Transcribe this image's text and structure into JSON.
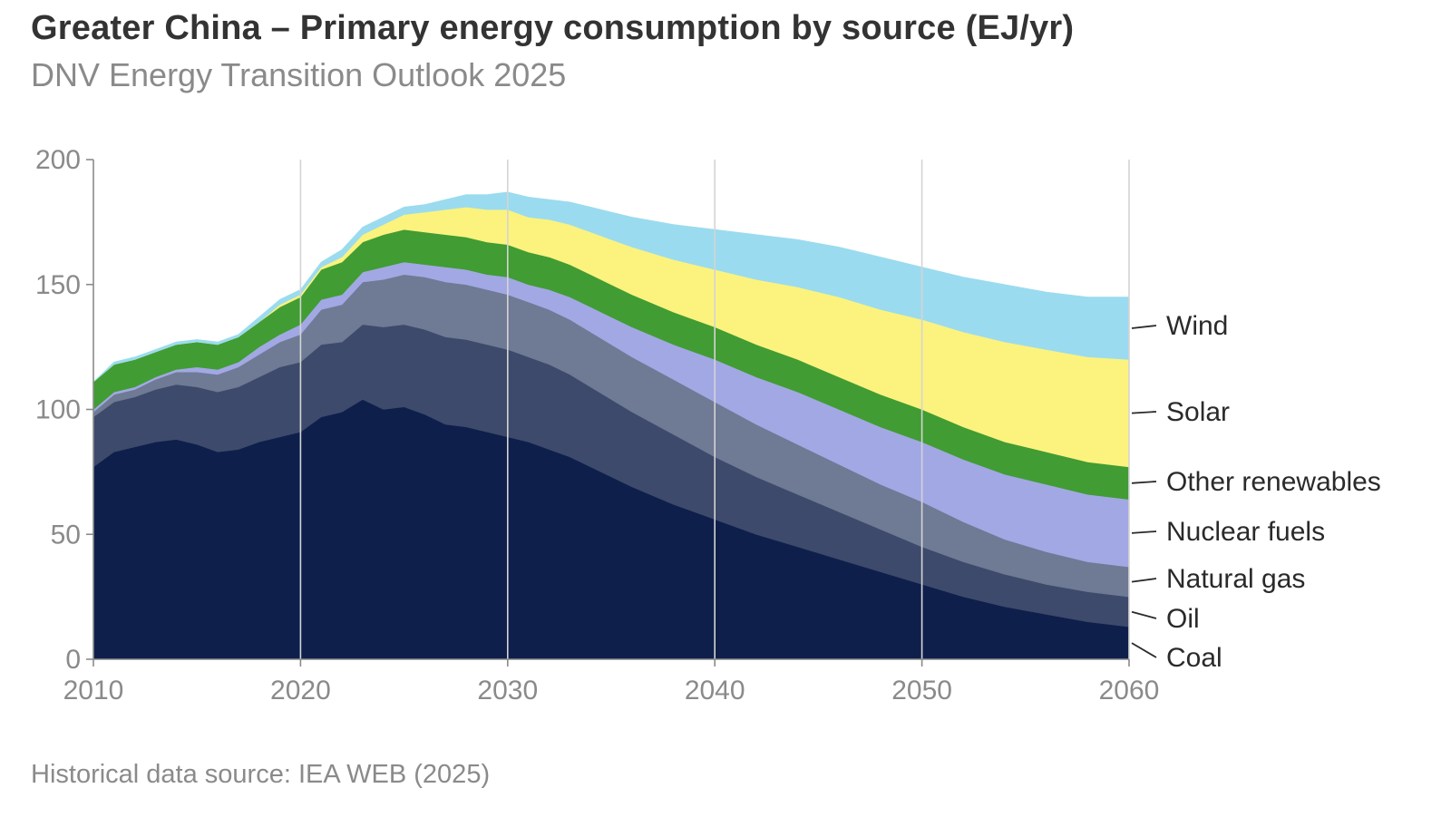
{
  "header": {
    "title": "Greater China – Primary energy consumption by source (EJ/yr)",
    "subtitle": "DNV Energy Transition Outlook 2025"
  },
  "footer": {
    "source": "Historical data source: IEA WEB (2025)"
  },
  "chart_data": {
    "type": "area",
    "stacked": true,
    "title": "Greater China – Primary energy consumption by source (EJ/yr)",
    "subtitle": "DNV Energy Transition Outlook 2025",
    "xlim": [
      2010,
      2060
    ],
    "ylim": [
      0,
      200
    ],
    "x_ticks": [
      2010,
      2020,
      2030,
      2040,
      2050,
      2060
    ],
    "y_ticks": [
      0,
      50,
      100,
      150,
      200
    ],
    "vertical_grid": true,
    "legend_placement": "right, inline labels at series ends",
    "x": [
      2010,
      2011,
      2012,
      2013,
      2014,
      2015,
      2016,
      2017,
      2018,
      2019,
      2020,
      2021,
      2022,
      2023,
      2024,
      2025,
      2026,
      2027,
      2028,
      2029,
      2030,
      2031,
      2032,
      2033,
      2034,
      2035,
      2036,
      2038,
      2040,
      2042,
      2044,
      2046,
      2048,
      2050,
      2052,
      2054,
      2056,
      2058,
      2060
    ],
    "series": [
      {
        "name": "Coal",
        "color": "#0f1f4b",
        "values": [
          77,
          83,
          85,
          87,
          88,
          86,
          83,
          84,
          87,
          89,
          91,
          97,
          99,
          104,
          100,
          101,
          98,
          94,
          93,
          91,
          89,
          87,
          84,
          81,
          77,
          73,
          69,
          62,
          56,
          50,
          45,
          40,
          35,
          30,
          25,
          21,
          18,
          15,
          13
        ]
      },
      {
        "name": "Oil",
        "color": "#3d4a6b",
        "values": [
          20,
          20,
          20,
          21,
          22,
          23,
          24,
          25,
          26,
          28,
          28,
          29,
          28,
          30,
          33,
          33,
          34,
          35,
          35,
          35,
          35,
          34,
          34,
          33,
          32,
          31,
          30,
          28,
          25,
          23,
          21,
          19,
          17,
          15,
          14,
          13,
          12,
          12,
          12
        ]
      },
      {
        "name": "Natural gas",
        "color": "#6f7a94",
        "values": [
          2,
          3,
          3,
          4,
          5,
          6,
          7,
          8,
          9,
          10,
          11,
          14,
          15,
          17,
          19,
          20,
          21,
          22,
          22,
          22,
          22,
          22,
          22,
          22,
          22,
          22,
          22,
          22,
          22,
          21,
          20,
          19,
          18,
          18,
          16,
          14,
          13,
          12,
          12
        ]
      },
      {
        "name": "Nuclear fuels",
        "color": "#a2a8e4",
        "values": [
          1,
          1,
          1,
          1,
          1,
          2,
          2,
          2,
          3,
          3,
          4,
          4,
          4,
          4,
          5,
          5,
          5,
          6,
          6,
          6,
          7,
          7,
          8,
          9,
          10,
          11,
          12,
          14,
          17,
          19,
          21,
          22,
          23,
          24,
          25,
          26,
          27,
          27,
          27
        ]
      },
      {
        "name": "Other renewables",
        "color": "#419c33",
        "values": [
          11,
          11,
          11,
          10,
          10,
          10,
          10,
          10,
          10,
          11,
          11,
          12,
          13,
          12,
          13,
          13,
          13,
          13,
          13,
          13,
          13,
          13,
          13,
          13,
          13,
          13,
          13,
          13,
          13,
          13,
          13,
          13,
          13,
          13,
          13,
          13,
          13,
          13,
          13
        ]
      },
      {
        "name": "Solar",
        "color": "#fbf37e",
        "values": [
          0,
          0,
          0,
          0,
          0,
          0,
          0,
          0,
          0,
          1,
          1,
          1,
          2,
          3,
          4,
          6,
          8,
          10,
          12,
          13,
          14,
          14,
          15,
          16,
          17,
          18,
          19,
          21,
          23,
          26,
          29,
          32,
          34,
          36,
          38,
          40,
          41,
          42,
          43
        ]
      },
      {
        "name": "Wind",
        "color": "#9bdbef",
        "values": [
          0,
          1,
          1,
          1,
          1,
          1,
          1,
          1,
          2,
          2,
          2,
          2,
          3,
          3,
          3,
          3,
          3,
          4,
          5,
          6,
          7,
          8,
          8,
          9,
          10,
          11,
          12,
          14,
          16,
          18,
          19,
          20,
          21,
          21,
          22,
          23,
          23,
          24,
          25
        ]
      }
    ]
  }
}
